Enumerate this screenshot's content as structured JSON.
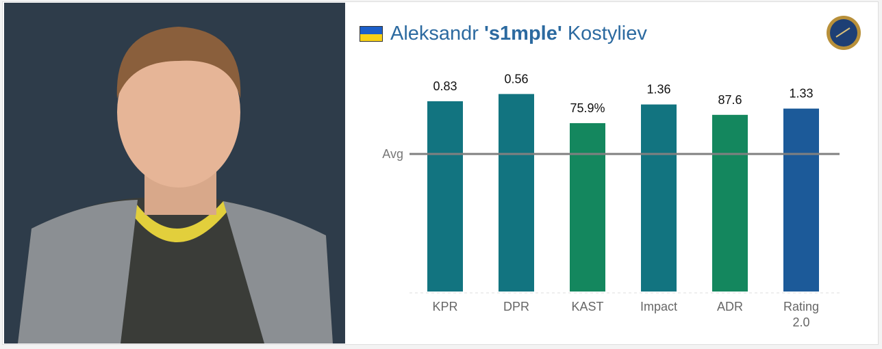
{
  "chart_data": {
    "type": "bar",
    "first_name": "Aleksandr",
    "nickname": "'s1mple'",
    "last_name": "Kostyliev",
    "avg_label": "Avg",
    "categories": [
      "KPR",
      "DPR",
      "KAST",
      "Impact",
      "ADR",
      "Rating 2.0"
    ],
    "values": [
      0.83,
      0.56,
      75.9,
      1.36,
      87.6,
      1.33
    ],
    "value_labels": [
      "0.83",
      "0.56",
      "75.9%",
      "1.36",
      "87.6",
      "1.33"
    ],
    "averages": [
      0.6,
      0.39,
      62,
      1,
      68.2,
      1
    ],
    "colors": [
      "#127480",
      "#127480",
      "#14875e",
      "#127480",
      "#14875e",
      "#1c5a99"
    ]
  }
}
